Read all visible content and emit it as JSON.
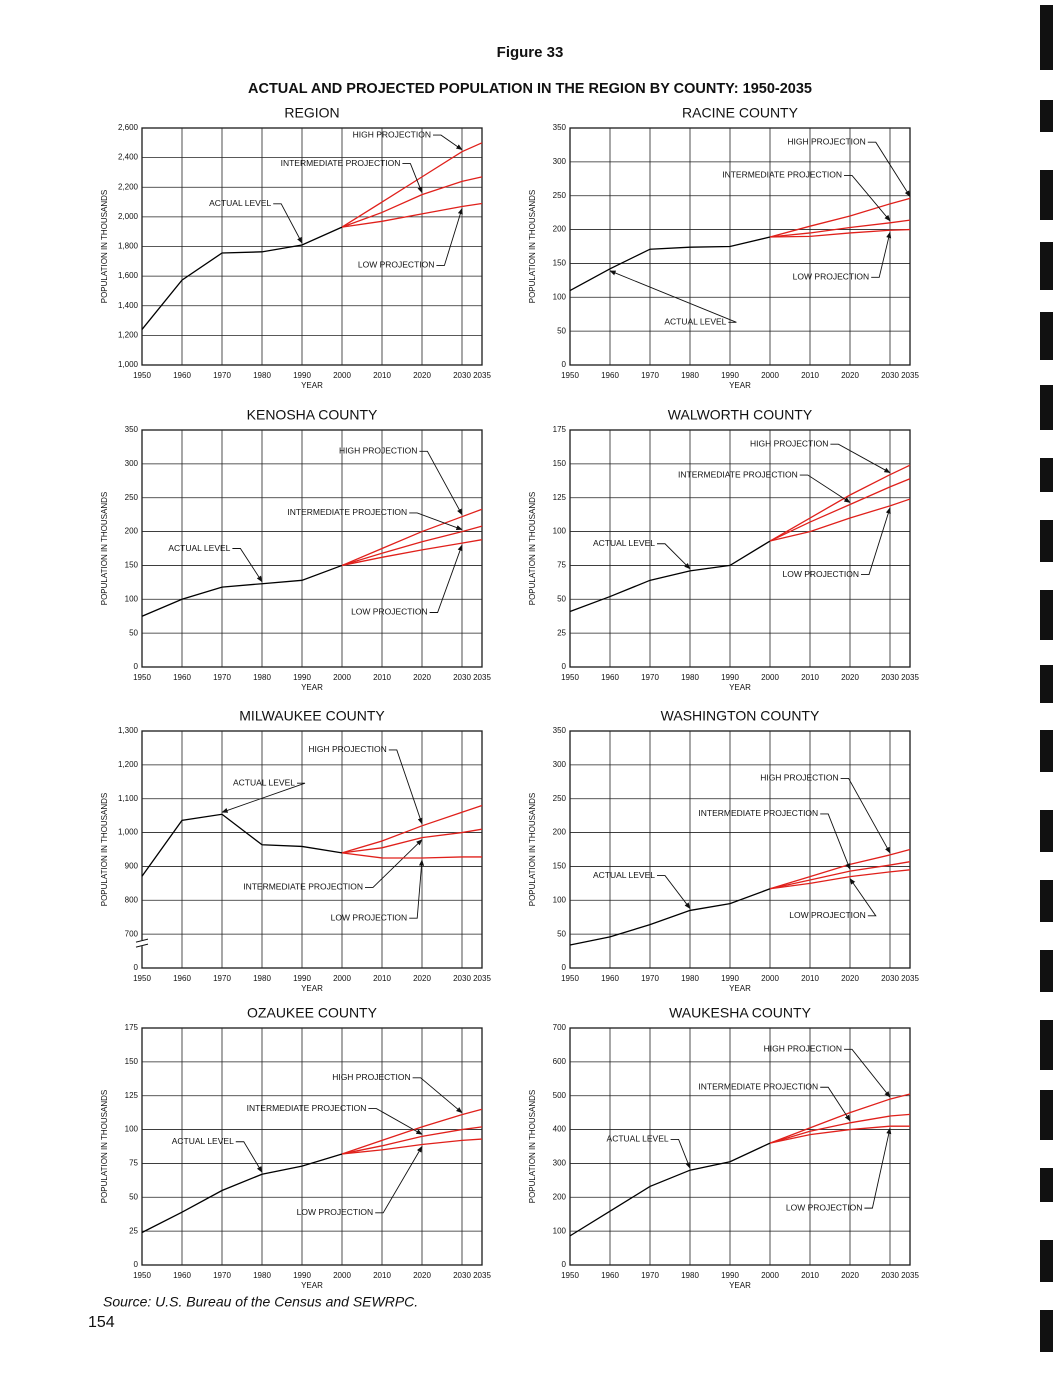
{
  "header": {
    "figure": "Figure 33",
    "title": "ACTUAL AND PROJECTED POPULATION IN THE REGION BY COUNTY: 1950-2035"
  },
  "chart_data": [
    {
      "type": "line",
      "title": "REGION",
      "x_label": "YEAR",
      "y_label": "POPULATION IN THOUSANDS",
      "grid": true,
      "xlim": [
        1950,
        2035
      ],
      "xticks": [
        1950,
        1960,
        1970,
        1980,
        1990,
        2000,
        2010,
        2020,
        2030,
        2035
      ],
      "ylim": [
        1000,
        2600
      ],
      "yticks": [
        {
          "value": 1000,
          "label": "1,000"
        },
        {
          "value": 1200,
          "label": "1,200"
        },
        {
          "value": 1400,
          "label": "1,400"
        },
        {
          "value": 1600,
          "label": "1,600"
        },
        {
          "value": 1800,
          "label": "1,800"
        },
        {
          "value": 2000,
          "label": "2,000"
        },
        {
          "value": 2200,
          "label": "2,200"
        },
        {
          "value": 2400,
          "label": "2,400"
        },
        {
          "value": 2600,
          "label": "2,600"
        }
      ],
      "series": [
        {
          "name": "ACTUAL LEVEL",
          "color": "#000000",
          "x": [
            1950,
            1960,
            1970,
            1980,
            1990,
            2000
          ],
          "values": [
            1240,
            1573,
            1756,
            1764,
            1810,
            1931
          ]
        },
        {
          "name": "HIGH PROJECTION",
          "color": "#e0201b",
          "x": [
            2000,
            2010,
            2020,
            2030,
            2035
          ],
          "values": [
            1931,
            2100,
            2270,
            2440,
            2500
          ]
        },
        {
          "name": "INTERMEDIATE PROJECTION",
          "color": "#e0201b",
          "x": [
            2000,
            2010,
            2020,
            2030,
            2035
          ],
          "values": [
            1931,
            2030,
            2150,
            2240,
            2270
          ]
        },
        {
          "name": "LOW PROJECTION",
          "color": "#e0201b",
          "x": [
            2000,
            2010,
            2020,
            2030,
            2035
          ],
          "values": [
            1931,
            1970,
            2020,
            2070,
            2090
          ]
        }
      ]
    },
    {
      "type": "line",
      "title": "RACINE COUNTY",
      "x_label": "YEAR",
      "y_label": "POPULATION IN THOUSANDS",
      "grid": true,
      "xlim": [
        1950,
        2035
      ],
      "xticks": [
        1950,
        1960,
        1970,
        1980,
        1990,
        2000,
        2010,
        2020,
        2030,
        2035
      ],
      "ylim": [
        0,
        350
      ],
      "yticks": [
        0,
        50,
        100,
        150,
        200,
        250,
        300,
        350
      ],
      "series": [
        {
          "name": "ACTUAL LEVEL",
          "color": "#000000",
          "x": [
            1950,
            1960,
            1970,
            1980,
            1990,
            2000
          ],
          "values": [
            110,
            142,
            171,
            174,
            175,
            189
          ]
        },
        {
          "name": "HIGH PROJECTION",
          "color": "#e0201b",
          "x": [
            2000,
            2010,
            2020,
            2030,
            2035
          ],
          "values": [
            189,
            205,
            220,
            238,
            246
          ]
        },
        {
          "name": "INTERMEDIATE PROJECTION",
          "color": "#e0201b",
          "x": [
            2000,
            2010,
            2020,
            2030,
            2035
          ],
          "values": [
            189,
            195,
            203,
            210,
            214
          ]
        },
        {
          "name": "LOW PROJECTION",
          "color": "#e0201b",
          "x": [
            2000,
            2010,
            2020,
            2030,
            2035
          ],
          "values": [
            189,
            190,
            195,
            199,
            200
          ]
        }
      ]
    },
    {
      "type": "line",
      "title": "KENOSHA COUNTY",
      "x_label": "YEAR",
      "y_label": "POPULATION IN THOUSANDS",
      "grid": true,
      "xlim": [
        1950,
        2035
      ],
      "xticks": [
        1950,
        1960,
        1970,
        1980,
        1990,
        2000,
        2010,
        2020,
        2030,
        2035
      ],
      "ylim": [
        0,
        350
      ],
      "yticks": [
        0,
        50,
        100,
        150,
        200,
        250,
        300,
        350
      ],
      "series": [
        {
          "name": "ACTUAL LEVEL",
          "color": "#000000",
          "x": [
            1950,
            1960,
            1970,
            1980,
            1990,
            2000
          ],
          "values": [
            75,
            100,
            118,
            123,
            128,
            150
          ]
        },
        {
          "name": "HIGH PROJECTION",
          "color": "#e0201b",
          "x": [
            2000,
            2010,
            2020,
            2030,
            2035
          ],
          "values": [
            150,
            175,
            200,
            222,
            233
          ]
        },
        {
          "name": "INTERMEDIATE PROJECTION",
          "color": "#e0201b",
          "x": [
            2000,
            2010,
            2020,
            2030,
            2035
          ],
          "values": [
            150,
            168,
            185,
            200,
            208
          ]
        },
        {
          "name": "LOW PROJECTION",
          "color": "#e0201b",
          "x": [
            2000,
            2010,
            2020,
            2030,
            2035
          ],
          "values": [
            150,
            162,
            173,
            183,
            188
          ]
        }
      ]
    },
    {
      "type": "line",
      "title": "WALWORTH COUNTY",
      "x_label": "YEAR",
      "y_label": "POPULATION IN THOUSANDS",
      "grid": true,
      "xlim": [
        1950,
        2035
      ],
      "xticks": [
        1950,
        1960,
        1970,
        1980,
        1990,
        2000,
        2010,
        2020,
        2030,
        2035
      ],
      "ylim": [
        0,
        175
      ],
      "yticks": [
        0,
        25,
        50,
        75,
        100,
        125,
        150,
        175
      ],
      "series": [
        {
          "name": "ACTUAL LEVEL",
          "color": "#000000",
          "x": [
            1950,
            1960,
            1970,
            1980,
            1990,
            2000
          ],
          "values": [
            41,
            52,
            64,
            71,
            75,
            93
          ]
        },
        {
          "name": "HIGH PROJECTION",
          "color": "#e0201b",
          "x": [
            2000,
            2010,
            2020,
            2030,
            2035
          ],
          "values": [
            93,
            110,
            127,
            142,
            149
          ]
        },
        {
          "name": "INTERMEDIATE PROJECTION",
          "color": "#e0201b",
          "x": [
            2000,
            2010,
            2020,
            2030,
            2035
          ],
          "values": [
            93,
            107,
            120,
            133,
            139
          ]
        },
        {
          "name": "LOW PROJECTION",
          "color": "#e0201b",
          "x": [
            2000,
            2010,
            2020,
            2030,
            2035
          ],
          "values": [
            93,
            100,
            110,
            119,
            124
          ]
        }
      ]
    },
    {
      "type": "line",
      "title": "MILWAUKEE COUNTY",
      "x_label": "YEAR",
      "y_label": "POPULATION IN THOUSANDS",
      "grid": true,
      "xlim": [
        1950,
        2035
      ],
      "xticks": [
        1950,
        1960,
        1970,
        1980,
        1990,
        2000,
        2010,
        2020,
        2030,
        2035
      ],
      "ylim": [
        0,
        1300
      ],
      "y_break": [
        0,
        700
      ],
      "yticks": [
        0,
        700,
        800,
        900,
        {
          "value": 1000,
          "label": "1,000"
        },
        {
          "value": 1100,
          "label": "1,100"
        },
        {
          "value": 1200,
          "label": "1,200"
        },
        {
          "value": 1300,
          "label": "1,300"
        }
      ],
      "series": [
        {
          "name": "ACTUAL LEVEL",
          "color": "#000000",
          "x": [
            1950,
            1960,
            1970,
            1980,
            1990,
            2000
          ],
          "values": [
            871,
            1036,
            1054,
            964,
            959,
            940
          ]
        },
        {
          "name": "HIGH PROJECTION",
          "color": "#e0201b",
          "x": [
            2000,
            2010,
            2020,
            2030,
            2035
          ],
          "values": [
            940,
            975,
            1020,
            1060,
            1080
          ]
        },
        {
          "name": "INTERMEDIATE PROJECTION",
          "color": "#e0201b",
          "x": [
            2000,
            2010,
            2020,
            2030,
            2035
          ],
          "values": [
            940,
            955,
            985,
            1000,
            1010
          ]
        },
        {
          "name": "LOW PROJECTION",
          "color": "#e0201b",
          "x": [
            2000,
            2010,
            2020,
            2030,
            2035
          ],
          "values": [
            940,
            925,
            925,
            928,
            928
          ]
        }
      ]
    },
    {
      "type": "line",
      "title": "WASHINGTON COUNTY",
      "x_label": "YEAR",
      "y_label": "POPULATION IN THOUSANDS",
      "grid": true,
      "xlim": [
        1950,
        2035
      ],
      "xticks": [
        1950,
        1960,
        1970,
        1980,
        1990,
        2000,
        2010,
        2020,
        2030,
        2035
      ],
      "ylim": [
        0,
        350
      ],
      "yticks": [
        0,
        50,
        100,
        150,
        200,
        250,
        300,
        350
      ],
      "series": [
        {
          "name": "ACTUAL LEVEL",
          "color": "#000000",
          "x": [
            1950,
            1960,
            1970,
            1980,
            1990,
            2000
          ],
          "values": [
            34,
            46,
            64,
            85,
            95,
            117
          ]
        },
        {
          "name": "HIGH PROJECTION",
          "color": "#e0201b",
          "x": [
            2000,
            2010,
            2020,
            2030,
            2035
          ],
          "values": [
            117,
            135,
            153,
            167,
            175
          ]
        },
        {
          "name": "INTERMEDIATE PROJECTION",
          "color": "#e0201b",
          "x": [
            2000,
            2010,
            2020,
            2030,
            2035
          ],
          "values": [
            117,
            130,
            143,
            152,
            157
          ]
        },
        {
          "name": "LOW PROJECTION",
          "color": "#e0201b",
          "x": [
            2000,
            2010,
            2020,
            2030,
            2035
          ],
          "values": [
            117,
            125,
            135,
            142,
            145
          ]
        }
      ]
    },
    {
      "type": "line",
      "title": "OZAUKEE COUNTY",
      "x_label": "YEAR",
      "y_label": "POPULATION IN THOUSANDS",
      "grid": true,
      "xlim": [
        1950,
        2035
      ],
      "xticks": [
        1950,
        1960,
        1970,
        1980,
        1990,
        2000,
        2010,
        2020,
        2030,
        2035
      ],
      "ylim": [
        0,
        175
      ],
      "yticks": [
        0,
        25,
        50,
        75,
        100,
        125,
        150,
        175
      ],
      "series": [
        {
          "name": "ACTUAL LEVEL",
          "color": "#000000",
          "x": [
            1950,
            1960,
            1970,
            1980,
            1990,
            2000
          ],
          "values": [
            24,
            39,
            55,
            67,
            73,
            82
          ]
        },
        {
          "name": "HIGH PROJECTION",
          "color": "#e0201b",
          "x": [
            2000,
            2010,
            2020,
            2030,
            2035
          ],
          "values": [
            82,
            92,
            102,
            111,
            115
          ]
        },
        {
          "name": "INTERMEDIATE PROJECTION",
          "color": "#e0201b",
          "x": [
            2000,
            2010,
            2020,
            2030,
            2035
          ],
          "values": [
            82,
            88,
            95,
            100,
            102
          ]
        },
        {
          "name": "LOW PROJECTION",
          "color": "#e0201b",
          "x": [
            2000,
            2010,
            2020,
            2030,
            2035
          ],
          "values": [
            82,
            85,
            89,
            92,
            93
          ]
        }
      ]
    },
    {
      "type": "line",
      "title": "WAUKESHA COUNTY",
      "x_label": "YEAR",
      "y_label": "POPULATION IN THOUSANDS",
      "grid": true,
      "xlim": [
        1950,
        2035
      ],
      "xticks": [
        1950,
        1960,
        1970,
        1980,
        1990,
        2000,
        2010,
        2020,
        2030,
        2035
      ],
      "ylim": [
        0,
        700
      ],
      "yticks": [
        0,
        100,
        200,
        300,
        400,
        500,
        600,
        700
      ],
      "series": [
        {
          "name": "ACTUAL LEVEL",
          "color": "#000000",
          "x": [
            1950,
            1960,
            1970,
            1980,
            1990,
            2000
          ],
          "values": [
            86,
            159,
            232,
            280,
            305,
            360
          ]
        },
        {
          "name": "HIGH PROJECTION",
          "color": "#e0201b",
          "x": [
            2000,
            2010,
            2020,
            2030,
            2035
          ],
          "values": [
            360,
            405,
            450,
            490,
            505
          ]
        },
        {
          "name": "INTERMEDIATE PROJECTION",
          "color": "#e0201b",
          "x": [
            2000,
            2010,
            2020,
            2030,
            2035
          ],
          "values": [
            360,
            395,
            420,
            440,
            445
          ]
        },
        {
          "name": "LOW PROJECTION",
          "color": "#e0201b",
          "x": [
            2000,
            2010,
            2020,
            2030,
            2035
          ],
          "values": [
            360,
            385,
            400,
            410,
            410
          ]
        }
      ]
    }
  ],
  "footer": {
    "source": "Source:  U.S. Bureau of the Census and SEWRPC.",
    "page_number": "154"
  }
}
